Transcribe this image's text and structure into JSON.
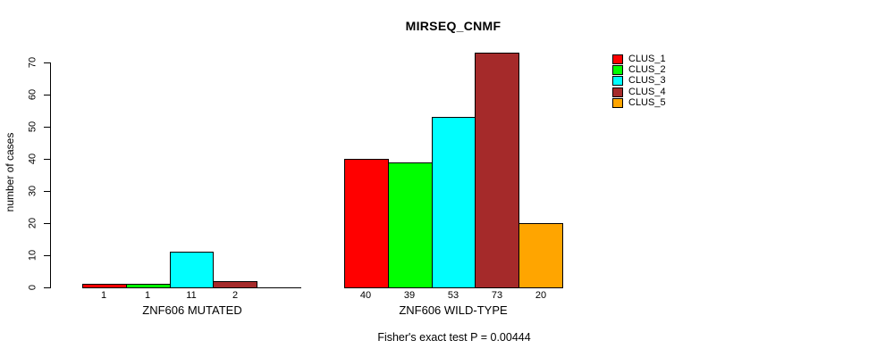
{
  "chart_data": {
    "type": "bar",
    "title": "MIRSEQ_CNMF",
    "ylabel": "number of cases",
    "xlabel": "",
    "ylim": [
      0,
      70
    ],
    "yticks": [
      0,
      10,
      20,
      30,
      40,
      50,
      60,
      70
    ],
    "grid": false,
    "legend_position": "right",
    "categories": [
      "ZNF606 MUTATED",
      "ZNF606 WILD-TYPE"
    ],
    "series": [
      {
        "name": "CLUS_1",
        "color": "#FF0000",
        "values": [
          1,
          40
        ]
      },
      {
        "name": "CLUS_2",
        "color": "#00FF00",
        "values": [
          1,
          39
        ]
      },
      {
        "name": "CLUS_3",
        "color": "#00FFFF",
        "values": [
          11,
          53
        ]
      },
      {
        "name": "CLUS_4",
        "color": "#A52A2A",
        "values": [
          2,
          73
        ]
      },
      {
        "name": "CLUS_5",
        "color": "#FFA500",
        "values": [
          0,
          20
        ]
      }
    ],
    "bar_value_labels": {
      "ZNF606 MUTATED": [
        "1",
        "1",
        "11",
        "2",
        ""
      ],
      "ZNF606 WILD-TYPE": [
        "40",
        "39",
        "53",
        "73",
        "20"
      ]
    },
    "caption": "Fisher's exact test P = 0.00444"
  }
}
